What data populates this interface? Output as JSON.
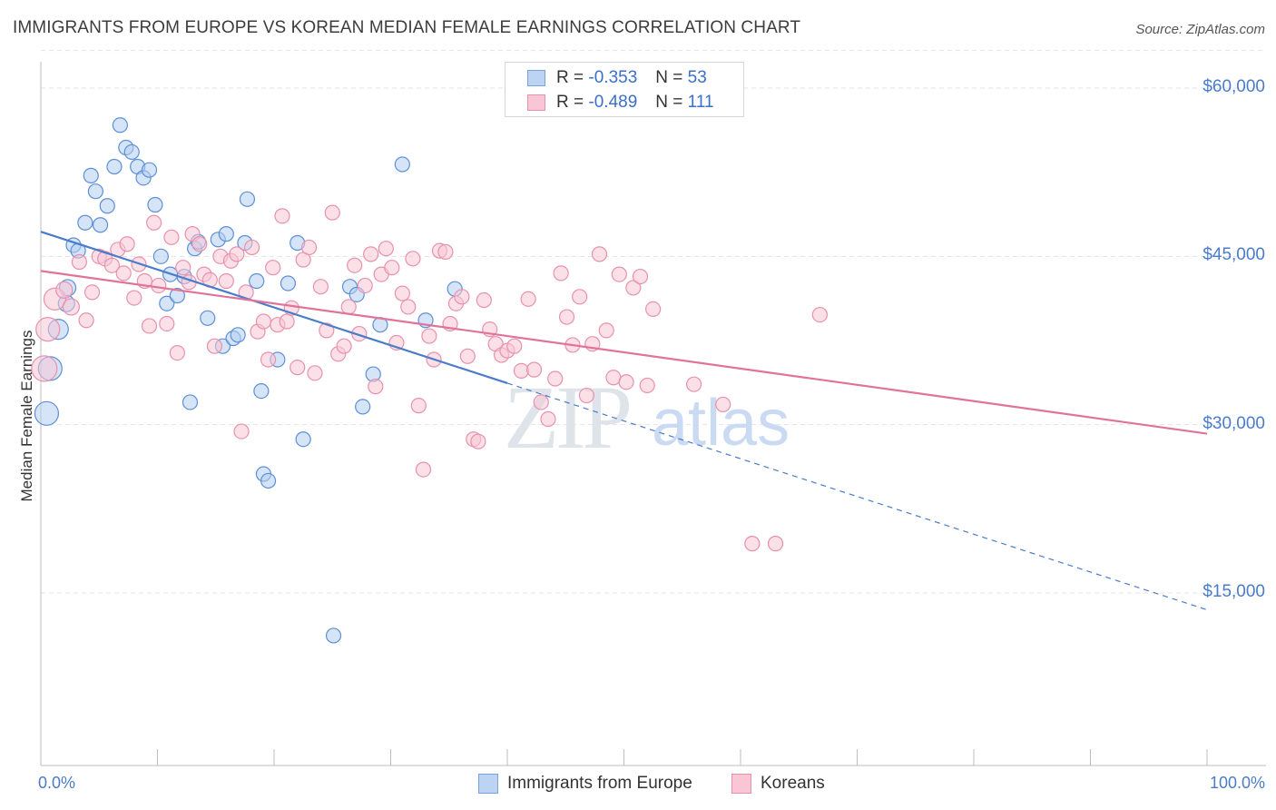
{
  "chart_data": {
    "type": "scatter",
    "title": "IMMIGRANTS FROM EUROPE VS KOREAN MEDIAN FEMALE EARNINGS CORRELATION CHART",
    "source": "Source: ZipAtlas.com",
    "xlabel": "",
    "ylabel": "Median Female Earnings",
    "xlim": [
      0,
      100
    ],
    "ylim": [
      0,
      64000
    ],
    "x_tick_labels": [
      "0.0%",
      "100.0%"
    ],
    "y_ticks": [
      {
        "value": 15000,
        "label": "$15,000"
      },
      {
        "value": 30000,
        "label": "$30,000"
      },
      {
        "value": 45000,
        "label": "$45,000"
      },
      {
        "value": 60000,
        "label": "$60,000"
      }
    ],
    "watermark": {
      "zip": "ZIP",
      "atlas": "atlas"
    },
    "legend": [
      {
        "r_label": "R =",
        "r_value": "-0.353",
        "n_label": "N =",
        "n_value": "53"
      },
      {
        "r_label": "R =",
        "r_value": "-0.489",
        "n_label": "N =",
        "n_value": "111"
      }
    ],
    "series": [
      {
        "name": "Immigrants from Europe",
        "color": "#4a7cc9",
        "fill": "#a9c6ee",
        "trend": {
          "x0": 0,
          "y0": 47200,
          "x1": 40,
          "y1": 33700,
          "dash_to_x": 100,
          "dash_to_y": 13500
        },
        "points": [
          [
            0.5,
            31000,
            13
          ],
          [
            0.8,
            35000,
            13
          ],
          [
            1.5,
            38500,
            11
          ],
          [
            2.2,
            40800,
            9
          ],
          [
            2.3,
            42200,
            9
          ],
          [
            2.8,
            46000,
            8
          ],
          [
            3.2,
            45500,
            8
          ],
          [
            3.8,
            48000,
            8
          ],
          [
            4.3,
            52200,
            8
          ],
          [
            4.7,
            50800,
            8
          ],
          [
            5.1,
            47800,
            8
          ],
          [
            5.7,
            49500,
            8
          ],
          [
            6.3,
            53000,
            8
          ],
          [
            6.8,
            56700,
            8
          ],
          [
            7.3,
            54700,
            8
          ],
          [
            7.8,
            54300,
            8
          ],
          [
            8.3,
            53000,
            8
          ],
          [
            8.8,
            52000,
            8
          ],
          [
            9.3,
            52700,
            8
          ],
          [
            9.8,
            49600,
            8
          ],
          [
            10.3,
            45000,
            8
          ],
          [
            10.8,
            40800,
            8
          ],
          [
            11.1,
            43400,
            8
          ],
          [
            11.7,
            41500,
            8
          ],
          [
            12.3,
            43200,
            8
          ],
          [
            12.8,
            32000,
            8
          ],
          [
            13.2,
            45700,
            8
          ],
          [
            13.5,
            46300,
            8
          ],
          [
            14.3,
            39500,
            8
          ],
          [
            15.2,
            46500,
            8
          ],
          [
            15.6,
            37000,
            8
          ],
          [
            15.9,
            47000,
            8
          ],
          [
            16.5,
            37700,
            8
          ],
          [
            16.9,
            38000,
            8
          ],
          [
            17.5,
            46200,
            8
          ],
          [
            17.7,
            50100,
            8
          ],
          [
            18.5,
            42800,
            8
          ],
          [
            18.9,
            33000,
            8
          ],
          [
            19.1,
            25600,
            8
          ],
          [
            19.5,
            25000,
            8
          ],
          [
            20.3,
            35800,
            8
          ],
          [
            21.2,
            42600,
            8
          ],
          [
            22.0,
            46200,
            8
          ],
          [
            22.5,
            28700,
            8
          ],
          [
            25.1,
            11200,
            8
          ],
          [
            26.5,
            42300,
            8
          ],
          [
            27.1,
            41600,
            8
          ],
          [
            27.6,
            31600,
            8
          ],
          [
            28.5,
            34500,
            8
          ],
          [
            29.1,
            38900,
            8
          ],
          [
            31.0,
            53200,
            8
          ],
          [
            33.0,
            39300,
            8
          ],
          [
            35.5,
            42100,
            8
          ]
        ]
      },
      {
        "name": "Koreans",
        "color": "#e07399",
        "fill": "#f4b6c9",
        "trend": {
          "x0": 0,
          "y0": 43700,
          "x1": 100,
          "y1": 29200
        },
        "points": [
          [
            0.3,
            35000,
            14
          ],
          [
            0.6,
            38500,
            13
          ],
          [
            1.2,
            41200,
            12
          ],
          [
            2.0,
            42000,
            9
          ],
          [
            2.6,
            40500,
            9
          ],
          [
            3.3,
            44500,
            8
          ],
          [
            3.9,
            39300,
            8
          ],
          [
            4.4,
            41800,
            8
          ],
          [
            5.0,
            45000,
            8
          ],
          [
            5.5,
            44800,
            8
          ],
          [
            6.1,
            44200,
            8
          ],
          [
            6.6,
            45600,
            8
          ],
          [
            7.1,
            43500,
            8
          ],
          [
            7.4,
            46100,
            8
          ],
          [
            8.0,
            41300,
            8
          ],
          [
            8.4,
            44300,
            8
          ],
          [
            8.9,
            42800,
            8
          ],
          [
            9.3,
            38800,
            8
          ],
          [
            9.7,
            48000,
            8
          ],
          [
            10.1,
            42400,
            8
          ],
          [
            10.8,
            39000,
            8
          ],
          [
            11.2,
            46700,
            8
          ],
          [
            11.7,
            36400,
            8
          ],
          [
            12.2,
            44000,
            8
          ],
          [
            12.7,
            42700,
            8
          ],
          [
            13.0,
            47000,
            8
          ],
          [
            13.6,
            46100,
            8
          ],
          [
            14.0,
            43400,
            8
          ],
          [
            14.5,
            42900,
            8
          ],
          [
            14.9,
            37000,
            8
          ],
          [
            15.4,
            45000,
            8
          ],
          [
            15.9,
            42800,
            8
          ],
          [
            16.3,
            44600,
            8
          ],
          [
            16.8,
            45200,
            8
          ],
          [
            17.2,
            29400,
            8
          ],
          [
            17.6,
            41800,
            8
          ],
          [
            18.1,
            45800,
            8
          ],
          [
            18.6,
            38300,
            8
          ],
          [
            19.1,
            39200,
            8
          ],
          [
            19.5,
            35800,
            8
          ],
          [
            19.9,
            44000,
            8
          ],
          [
            20.3,
            38900,
            8
          ],
          [
            20.7,
            48600,
            8
          ],
          [
            21.1,
            39200,
            8
          ],
          [
            21.5,
            40400,
            8
          ],
          [
            22.0,
            35100,
            8
          ],
          [
            22.5,
            44700,
            8
          ],
          [
            23.0,
            45800,
            8
          ],
          [
            23.5,
            34600,
            8
          ],
          [
            24.0,
            42300,
            8
          ],
          [
            24.5,
            38400,
            8
          ],
          [
            25.0,
            48900,
            8
          ],
          [
            25.5,
            36300,
            8
          ],
          [
            26.0,
            37000,
            8
          ],
          [
            26.4,
            40500,
            8
          ],
          [
            26.9,
            44200,
            8
          ],
          [
            27.3,
            38100,
            8
          ],
          [
            27.8,
            42400,
            8
          ],
          [
            28.3,
            45200,
            8
          ],
          [
            28.7,
            33400,
            8
          ],
          [
            29.2,
            43400,
            8
          ],
          [
            29.6,
            45700,
            8
          ],
          [
            30.1,
            44000,
            8
          ],
          [
            30.5,
            37300,
            8
          ],
          [
            31.0,
            41700,
            8
          ],
          [
            31.5,
            40500,
            8
          ],
          [
            31.9,
            44800,
            8
          ],
          [
            32.4,
            31700,
            8
          ],
          [
            32.8,
            26000,
            8
          ],
          [
            33.3,
            37900,
            8
          ],
          [
            33.7,
            35800,
            8
          ],
          [
            34.2,
            45500,
            8
          ],
          [
            34.7,
            45400,
            8
          ],
          [
            35.1,
            39000,
            8
          ],
          [
            35.6,
            40800,
            8
          ],
          [
            36.1,
            41400,
            8
          ],
          [
            36.6,
            36100,
            8
          ],
          [
            37.1,
            28700,
            8
          ],
          [
            37.5,
            28500,
            8
          ],
          [
            38.0,
            41100,
            8
          ],
          [
            38.5,
            38500,
            8
          ],
          [
            39.0,
            37200,
            8
          ],
          [
            39.5,
            36200,
            8
          ],
          [
            40.0,
            36600,
            8
          ],
          [
            40.6,
            37000,
            8
          ],
          [
            41.2,
            34800,
            8
          ],
          [
            41.8,
            41200,
            8
          ],
          [
            42.3,
            34900,
            8
          ],
          [
            42.9,
            32000,
            8
          ],
          [
            43.5,
            30500,
            8
          ],
          [
            44.1,
            34100,
            8
          ],
          [
            44.6,
            43500,
            8
          ],
          [
            45.1,
            39600,
            8
          ],
          [
            45.6,
            37100,
            8
          ],
          [
            46.2,
            41400,
            8
          ],
          [
            46.8,
            32600,
            8
          ],
          [
            47.3,
            37200,
            8
          ],
          [
            47.9,
            45200,
            8
          ],
          [
            48.5,
            38400,
            8
          ],
          [
            49.1,
            34200,
            8
          ],
          [
            49.6,
            43400,
            8
          ],
          [
            50.2,
            33800,
            8
          ],
          [
            50.8,
            42200,
            8
          ],
          [
            51.4,
            43200,
            8
          ],
          [
            52.0,
            33500,
            8
          ],
          [
            52.5,
            40300,
            8
          ],
          [
            56.0,
            33600,
            8
          ],
          [
            58.5,
            31800,
            8
          ],
          [
            61.0,
            19400,
            8
          ],
          [
            63.0,
            19400,
            8
          ],
          [
            66.8,
            39800,
            8
          ]
        ]
      }
    ]
  },
  "bottom_legend": {
    "europe_label": "Immigrants from Europe",
    "korean_label": "Koreans"
  }
}
